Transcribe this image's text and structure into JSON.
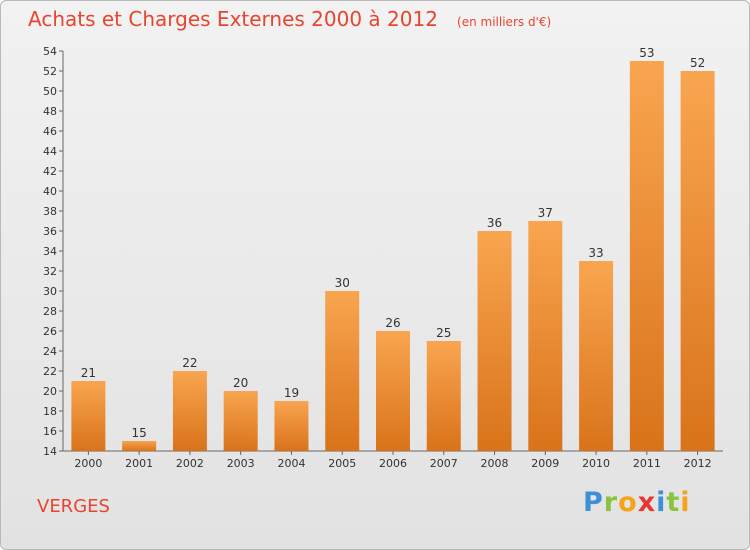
{
  "title": "Achats et Charges Externes 2000 à 2012",
  "unit": "(en milliers d'€)",
  "commune": "VERGES",
  "logo": {
    "letters": [
      "P",
      "r",
      "o",
      "x",
      "i",
      "t",
      "i"
    ],
    "colors": [
      "#3d8fd8",
      "#8ac43f",
      "#f7a21b",
      "#e8352f",
      "#3d8fd8",
      "#8ac43f",
      "#f7a21b"
    ]
  },
  "colors": {
    "bar_light": "#f9a550",
    "bar_dark": "#d9731a",
    "accent": "#e8452f"
  },
  "chart_data": {
    "type": "bar",
    "categories": [
      "2000",
      "2001",
      "2002",
      "2003",
      "2004",
      "2005",
      "2006",
      "2007",
      "2008",
      "2009",
      "2010",
      "2011",
      "2012"
    ],
    "values": [
      21,
      15,
      22,
      20,
      19,
      30,
      26,
      25,
      36,
      37,
      33,
      53,
      52
    ],
    "title": "Achats et Charges Externes 2000 à 2012",
    "ylim": [
      14,
      54
    ],
    "yticks": [
      14,
      16,
      18,
      20,
      22,
      24,
      26,
      28,
      30,
      32,
      34,
      36,
      38,
      40,
      42,
      44,
      46,
      48,
      50,
      52,
      54
    ],
    "grid": false
  }
}
